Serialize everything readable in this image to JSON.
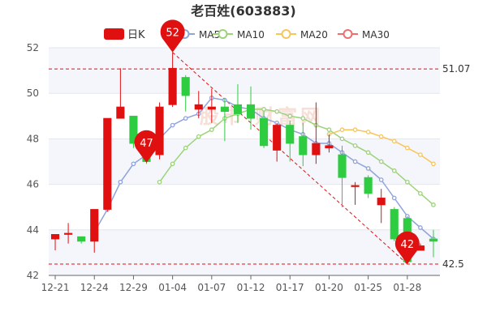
{
  "chart_data": {
    "type": "candlestick",
    "title": "老百姓(603883)",
    "legend": [
      {
        "name": "日K",
        "color": "#e01010",
        "icon": "rounded-rect"
      },
      {
        "name": "MA5",
        "color": "#8fa3dd",
        "icon": "circle"
      },
      {
        "name": "MA10",
        "color": "#9dd27a",
        "icon": "circle"
      },
      {
        "name": "MA20",
        "color": "#f8c55c",
        "icon": "circle"
      },
      {
        "name": "MA30",
        "color": "#ef6d6d",
        "icon": "circle"
      }
    ],
    "legend_placement": "top-center",
    "ylim": [
      42,
      52
    ],
    "yticks": [
      42,
      44,
      46,
      48,
      50,
      52
    ],
    "xtick_labels": [
      {
        "label": "12-21",
        "index": 0
      },
      {
        "label": "12-24",
        "index": 3
      },
      {
        "label": "12-29",
        "index": 6
      },
      {
        "label": "01-04",
        "index": 9
      },
      {
        "label": "01-07",
        "index": 12
      },
      {
        "label": "01-12",
        "index": 15
      },
      {
        "label": "01-17",
        "index": 18
      },
      {
        "label": "01-20",
        "index": 21
      },
      {
        "label": "01-25",
        "index": 24
      },
      {
        "label": "01-28",
        "index": 27
      }
    ],
    "grid": "horizontal",
    "up_color": "#e01010",
    "down_color": "#2ecc40",
    "candles": [
      {
        "open": 43.6,
        "close": 43.8,
        "high": 43.8,
        "low": 43.1
      },
      {
        "open": 43.8,
        "close": 43.85,
        "high": 44.3,
        "low": 43.4
      },
      {
        "open": 43.7,
        "close": 43.5,
        "high": 43.7,
        "low": 43.4
      },
      {
        "open": 43.5,
        "close": 44.9,
        "high": 44.9,
        "low": 43.0
      },
      {
        "open": 44.9,
        "close": 48.9,
        "high": 48.9,
        "low": 44.8
      },
      {
        "open": 48.9,
        "close": 49.4,
        "high": 51.1,
        "low": 48.9
      },
      {
        "open": 49.0,
        "close": 47.8,
        "high": 49.0,
        "low": 47.6
      },
      {
        "open": 47.6,
        "close": 47.0,
        "high": 47.9,
        "low": 46.9
      },
      {
        "open": 47.3,
        "close": 49.4,
        "high": 49.6,
        "low": 47.1
      },
      {
        "open": 49.5,
        "close": 51.1,
        "high": 51.8,
        "low": 49.4
      },
      {
        "open": 50.7,
        "close": 49.9,
        "high": 50.8,
        "low": 49.2
      },
      {
        "open": 49.3,
        "close": 49.5,
        "high": 50.1,
        "low": 48.9
      },
      {
        "open": 49.3,
        "close": 49.4,
        "high": 50.2,
        "low": 48.7
      },
      {
        "open": 49.4,
        "close": 49.2,
        "high": 49.8,
        "low": 47.9
      },
      {
        "open": 49.5,
        "close": 49.1,
        "high": 50.4,
        "low": 48.7
      },
      {
        "open": 49.5,
        "close": 48.9,
        "high": 50.3,
        "low": 48.4
      },
      {
        "open": 48.9,
        "close": 47.7,
        "high": 49.2,
        "low": 47.6
      },
      {
        "open": 47.5,
        "close": 48.6,
        "high": 48.7,
        "low": 47.0
      },
      {
        "open": 48.6,
        "close": 47.8,
        "high": 48.8,
        "low": 47.0
      },
      {
        "open": 48.1,
        "close": 47.3,
        "high": 48.7,
        "low": 46.8
      },
      {
        "open": 47.3,
        "close": 47.8,
        "high": 49.6,
        "low": 46.9
      },
      {
        "open": 47.6,
        "close": 47.7,
        "high": 48.2,
        "low": 47.4
      },
      {
        "open": 47.3,
        "close": 46.3,
        "high": 47.7,
        "low": 45.0
      },
      {
        "open": 45.9,
        "close": 45.95,
        "high": 46.1,
        "low": 45.1
      },
      {
        "open": 46.3,
        "close": 45.6,
        "high": 46.4,
        "low": 45.4
      },
      {
        "open": 45.1,
        "close": 45.4,
        "high": 45.8,
        "low": 44.3
      },
      {
        "open": 44.9,
        "close": 43.6,
        "high": 45.0,
        "low": 43.5
      },
      {
        "open": 44.5,
        "close": 42.6,
        "high": 44.6,
        "low": 42.5
      },
      {
        "open": 43.1,
        "close": 43.3,
        "high": 43.4,
        "low": 43.1
      },
      {
        "open": 43.6,
        "close": 43.5,
        "high": 44.0,
        "low": 42.8
      }
    ],
    "ma_lines": [
      {
        "name": "MA5",
        "color": "#8fa3dd",
        "points": [
          [
            3,
            43.9
          ],
          [
            4,
            44.9
          ],
          [
            5,
            46.1
          ],
          [
            6,
            46.9
          ],
          [
            7,
            47.3
          ],
          [
            8,
            48.0
          ],
          [
            9,
            48.6
          ],
          [
            10,
            48.9
          ],
          [
            11,
            49.1
          ],
          [
            12,
            49.8
          ],
          [
            13,
            49.7
          ],
          [
            14,
            49.4
          ],
          [
            15,
            49.3
          ],
          [
            16,
            48.9
          ],
          [
            17,
            48.7
          ],
          [
            18,
            48.4
          ],
          [
            19,
            48.2
          ],
          [
            20,
            47.8
          ],
          [
            21,
            47.8
          ],
          [
            22,
            47.4
          ],
          [
            23,
            47.0
          ],
          [
            24,
            46.7
          ],
          [
            25,
            46.2
          ],
          [
            26,
            45.4
          ],
          [
            27,
            44.6
          ],
          [
            28,
            44.1
          ],
          [
            29,
            43.6
          ]
        ]
      },
      {
        "name": "MA10",
        "color": "#9dd27a",
        "points": [
          [
            8,
            46.1
          ],
          [
            9,
            46.9
          ],
          [
            10,
            47.6
          ],
          [
            11,
            48.1
          ],
          [
            12,
            48.4
          ],
          [
            13,
            48.9
          ],
          [
            14,
            49.1
          ],
          [
            15,
            49.3
          ],
          [
            16,
            49.3
          ],
          [
            17,
            49.2
          ],
          [
            18,
            49.0
          ],
          [
            19,
            48.9
          ],
          [
            20,
            48.6
          ],
          [
            21,
            48.4
          ],
          [
            22,
            48.0
          ],
          [
            23,
            47.7
          ],
          [
            24,
            47.4
          ],
          [
            25,
            47.0
          ],
          [
            26,
            46.6
          ],
          [
            27,
            46.1
          ],
          [
            28,
            45.6
          ],
          [
            29,
            45.1
          ]
        ]
      },
      {
        "name": "MA20",
        "color": "#f8c55c",
        "points": [
          [
            21,
            48.2
          ],
          [
            22,
            48.4
          ],
          [
            23,
            48.4
          ],
          [
            24,
            48.3
          ],
          [
            25,
            48.1
          ],
          [
            26,
            47.9
          ],
          [
            27,
            47.6
          ],
          [
            28,
            47.3
          ],
          [
            29,
            46.9
          ]
        ]
      },
      {
        "name": "MA30",
        "color": "#ef6d6d",
        "points": []
      }
    ],
    "reference_lines": [
      {
        "value": 51.07,
        "label": "51.07",
        "color": "#e01010"
      },
      {
        "value": 42.5,
        "label": "42.5",
        "color": "#e01010"
      }
    ],
    "trend_line": {
      "from": [
        9,
        51.8
      ],
      "to": [
        27,
        42.5
      ],
      "color": "#e01010"
    },
    "markers": [
      {
        "label": "52",
        "index": 9,
        "value": 51.8,
        "color": "#e01010"
      },
      {
        "label": "47",
        "index": 7,
        "value": 46.95,
        "color": "#e01010"
      },
      {
        "label": "42",
        "index": 27,
        "value": 42.5,
        "color": "#e01010"
      }
    ],
    "watermark": "股市 财富网"
  }
}
